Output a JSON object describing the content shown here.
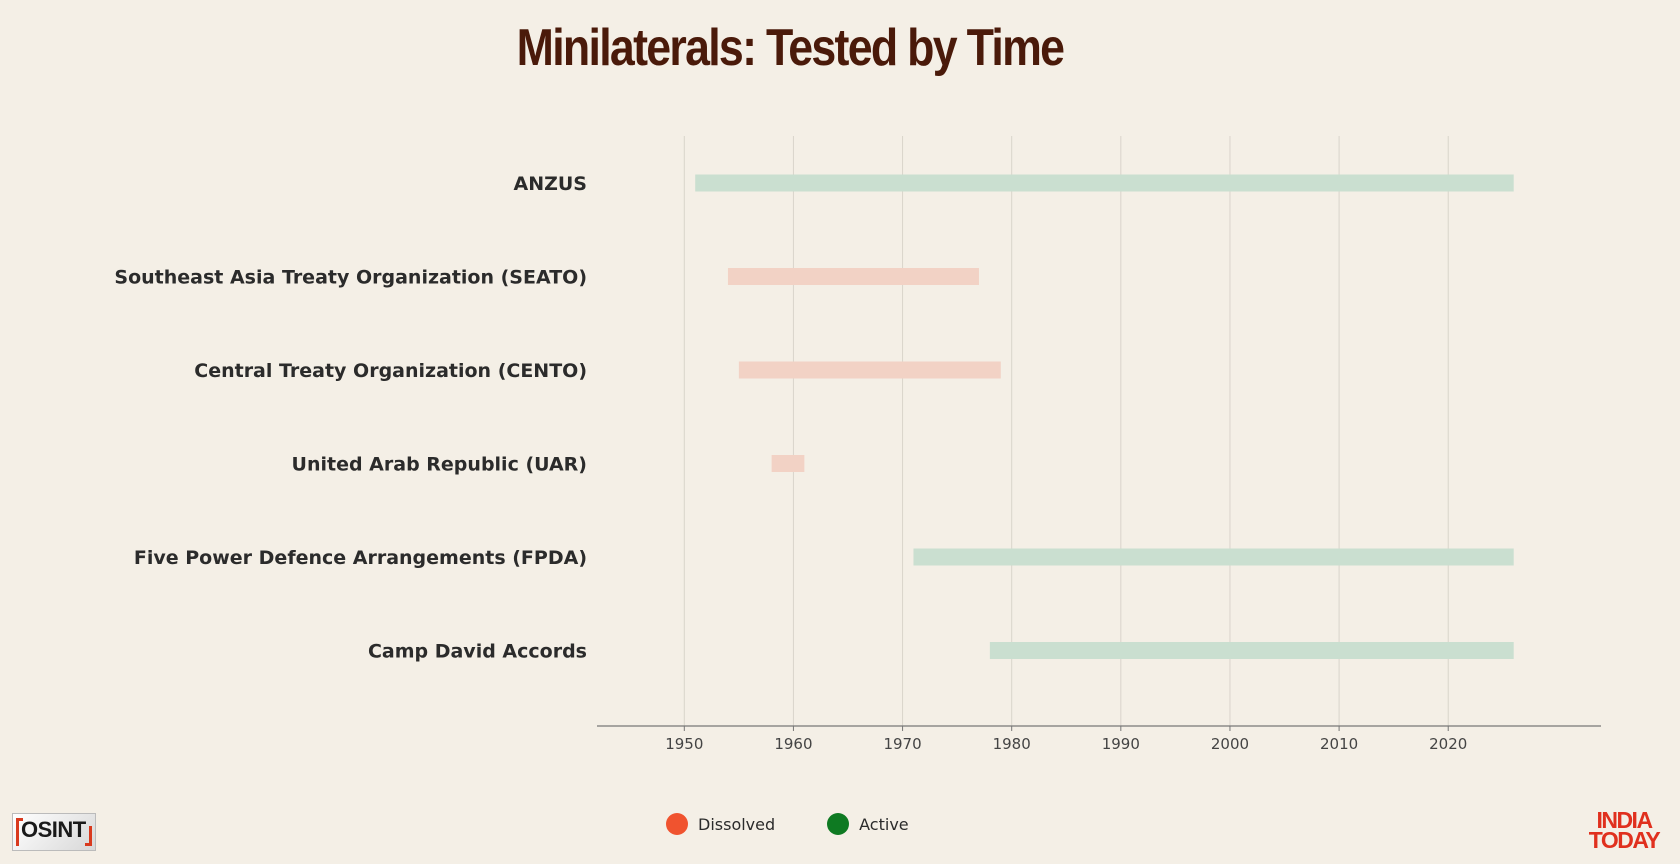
{
  "title": "Minilaterals: Tested by Time",
  "chart_data": {
    "type": "bar",
    "orientation": "horizontal",
    "subtype": "timeline",
    "title": "Minilaterals: Tested by Time",
    "xlabel": "",
    "ylabel": "",
    "xlim": [
      1942,
      2034
    ],
    "xticks": [
      1950,
      1960,
      1970,
      1980,
      1990,
      2000,
      2010,
      2020
    ],
    "grid": "vertical",
    "legend_position": "bottom",
    "categories": [
      "ANZUS",
      "Southeast Asia Treaty Organization (SEATO)",
      "Central Treaty Organization (CENTO)",
      "United Arab Republic (UAR)",
      "Five Power Defence Arrangements (FPDA)",
      "Camp David Accords"
    ],
    "bars": [
      {
        "label": "ANZUS",
        "start": 1951,
        "end": 2026,
        "status": "Active"
      },
      {
        "label": "Southeast Asia Treaty Organization (SEATO)",
        "start": 1954,
        "end": 1977,
        "status": "Dissolved"
      },
      {
        "label": "Central Treaty Organization (CENTO)",
        "start": 1955,
        "end": 1979,
        "status": "Dissolved"
      },
      {
        "label": "United Arab Republic (UAR)",
        "start": 1958,
        "end": 1961,
        "status": "Dissolved"
      },
      {
        "label": "Five Power Defence Arrangements (FPDA)",
        "start": 1971,
        "end": 2026,
        "status": "Active"
      },
      {
        "label": "Camp David Accords",
        "start": 1978,
        "end": 2026,
        "status": "Active"
      }
    ],
    "legend": [
      {
        "label": "Dissolved",
        "color": "#f0532f"
      },
      {
        "label": "Active",
        "color": "#0e7a22"
      }
    ],
    "bar_colors": {
      "Dissolved": "#f2d2c5",
      "Active": "#cadfd0"
    }
  },
  "logos": {
    "left": "OSINT",
    "right_line1": "INDIA",
    "right_line2": "TODAY"
  }
}
